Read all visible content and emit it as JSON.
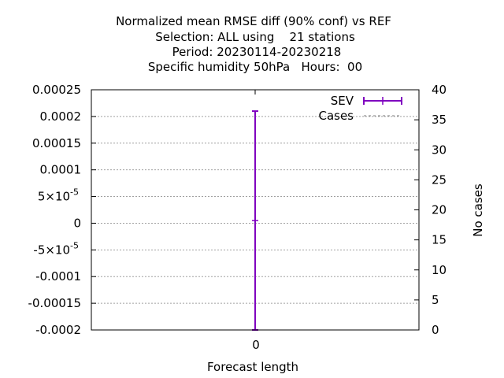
{
  "chart_data": {
    "type": "errorbar",
    "title_lines": [
      "Normalized mean RMSE diff (90% conf) vs REF",
      "Selection: ALL using    21 stations",
      "Period: 20230114-20230218",
      "Specific humidity 50hPa   Hours:  00"
    ],
    "xlabel": "Forecast length",
    "ylabel": "",
    "y2label": "No cases",
    "x_tick_labels": [
      "0"
    ],
    "y_tick_labels": [
      "0.00025",
      "0.0002",
      "0.00015",
      "0.0001",
      "5×10",
      "0",
      "-5×10",
      "-0.0001",
      "-0.00015",
      "-0.0002"
    ],
    "y_tick_values": [
      0.00025,
      0.0002,
      0.00015,
      0.0001,
      5e-05,
      0,
      -5e-05,
      -0.0001,
      -0.00015,
      -0.0002
    ],
    "y_tick_exponents": [
      "",
      "",
      "",
      "",
      "-5",
      "",
      "-5",
      "",
      "",
      ""
    ],
    "ylim": [
      -0.0002,
      0.00025
    ],
    "y2_tick_labels": [
      "40",
      "35",
      "30",
      "25",
      "20",
      "15",
      "10",
      "5",
      "0"
    ],
    "y2_tick_values": [
      40,
      35,
      30,
      25,
      20,
      15,
      10,
      5,
      0
    ],
    "y2lim": [
      0,
      40
    ],
    "xlim": [
      -1,
      1
    ],
    "grid": true,
    "legend_position": "top-right",
    "series": [
      {
        "name": "SEV",
        "color": "#7f00bf",
        "points": [
          {
            "x": 0,
            "y": 5e-06,
            "ylow": -0.0002,
            "yhigh": 0.00021
          }
        ]
      },
      {
        "name": "Cases",
        "color": "#7f7f7f",
        "axis": "y2",
        "values": []
      }
    ]
  }
}
